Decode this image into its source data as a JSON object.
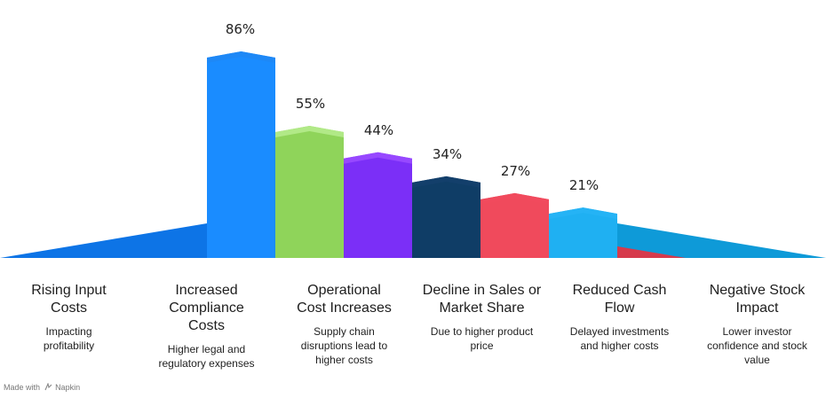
{
  "chart_data": {
    "type": "bar",
    "categories": [
      "Rising Input Costs",
      "Increased Compliance Costs",
      "Operational Cost Increases",
      "Decline in Sales or Market Share",
      "Reduced Cash Flow",
      "Negative Stock Impact"
    ],
    "values": [
      86,
      55,
      44,
      34,
      27,
      21
    ],
    "value_labels": [
      "86%",
      "55%",
      "44%",
      "34%",
      "27%",
      "21%"
    ],
    "descriptions": [
      "Impacting profitability",
      "Higher legal and regulatory expenses",
      "Supply chain disruptions lead to higher costs",
      "Due to higher product price",
      "Delayed investments and higher costs",
      "Lower investor confidence and stock value"
    ],
    "colors": [
      "#1a8cff",
      "#8fd45a",
      "#7b2ff7",
      "#0f3d66",
      "#f04a5c",
      "#1fb0f2"
    ],
    "top_colors": [
      "#1f87f5",
      "#b5eb8c",
      "#9a4bff",
      "#143f6b",
      "#f14a5d",
      "#26b4f5"
    ],
    "dark_colors": [
      "#0d74e6",
      "#7cc94a",
      "#6a1fe6",
      "#0c2a48",
      "#d63a4c",
      "#0e9ad8"
    ],
    "ylim": [
      0,
      100
    ],
    "grid": false,
    "legend": "none"
  },
  "columns": [
    {
      "title": "Rising Input\nCosts",
      "desc": "Impacting\nprofitability"
    },
    {
      "title": "Increased\nCompliance\nCosts",
      "desc": "Higher legal and\nregulatory expenses"
    },
    {
      "title": "Operational\nCost Increases",
      "desc": "Supply chain\ndisruptions lead to\nhigher costs"
    },
    {
      "title": "Decline in Sales or\nMarket Share",
      "desc": "Due to higher product\nprice"
    },
    {
      "title": "Reduced Cash\nFlow",
      "desc": "Delayed investments\nand higher costs"
    },
    {
      "title": "Negative Stock\nImpact",
      "desc": "Lower investor\nconfidence and stock\nvalue"
    }
  ],
  "footer": {
    "made_with": "Made with",
    "icon": "napkin-logo-icon",
    "brand": "Napkin"
  }
}
